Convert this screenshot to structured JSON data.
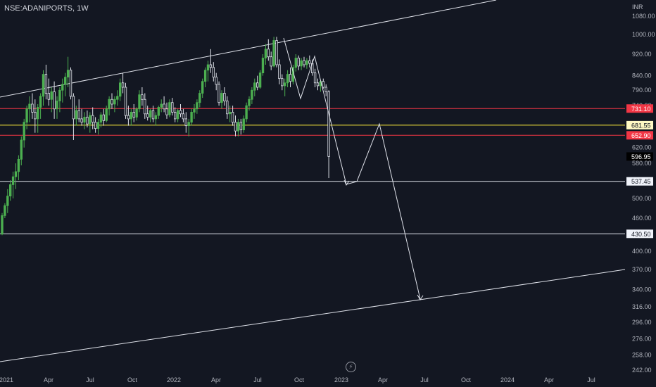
{
  "header": {
    "symbol": "NSE:ADANIPORTS, 1W",
    "currency": "INR"
  },
  "colors": {
    "background": "#131722",
    "up": "#4caf50",
    "down": "#e0e3eb",
    "resistance": "#f23645",
    "highlight": "#ffeb3b",
    "line": "#e0e3eb"
  },
  "chart_data": {
    "type": "candlestick",
    "title": "NSE:ADANIPORTS, 1W",
    "y_unit": "INR",
    "y_scale": "log",
    "ylim": [
      236,
      1150
    ],
    "y_ticks": [
      1080,
      1000,
      920,
      840,
      790,
      740,
      620,
      580,
      500,
      460,
      400,
      370,
      340,
      316,
      296,
      276,
      258,
      242
    ],
    "x_ticks": [
      "2021",
      "Apr",
      "Jul",
      "Oct",
      "2022",
      "Apr",
      "Jul",
      "Oct",
      "2023",
      "Apr",
      "Jul",
      "Oct",
      "2024",
      "Apr",
      "Jul"
    ],
    "candles_approx": [
      {
        "o": 430,
        "h": 470,
        "l": 428,
        "c": 465
      },
      {
        "o": 465,
        "h": 490,
        "l": 460,
        "c": 485
      },
      {
        "o": 485,
        "h": 520,
        "l": 470,
        "c": 505
      },
      {
        "o": 505,
        "h": 540,
        "l": 495,
        "c": 530
      },
      {
        "o": 530,
        "h": 560,
        "l": 500,
        "c": 548
      },
      {
        "o": 548,
        "h": 580,
        "l": 520,
        "c": 560
      },
      {
        "o": 560,
        "h": 600,
        "l": 540,
        "c": 590
      },
      {
        "o": 590,
        "h": 650,
        "l": 575,
        "c": 640
      },
      {
        "o": 640,
        "h": 700,
        "l": 620,
        "c": 690
      },
      {
        "o": 690,
        "h": 740,
        "l": 670,
        "c": 730
      },
      {
        "o": 730,
        "h": 770,
        "l": 690,
        "c": 745
      },
      {
        "o": 745,
        "h": 780,
        "l": 700,
        "c": 720
      },
      {
        "o": 720,
        "h": 760,
        "l": 660,
        "c": 700
      },
      {
        "o": 700,
        "h": 745,
        "l": 660,
        "c": 735
      },
      {
        "o": 735,
        "h": 780,
        "l": 700,
        "c": 770
      },
      {
        "o": 770,
        "h": 860,
        "l": 740,
        "c": 845
      },
      {
        "o": 845,
        "h": 880,
        "l": 760,
        "c": 780
      },
      {
        "o": 780,
        "h": 830,
        "l": 740,
        "c": 760
      },
      {
        "o": 760,
        "h": 800,
        "l": 720,
        "c": 785
      },
      {
        "o": 785,
        "h": 820,
        "l": 700,
        "c": 730
      },
      {
        "o": 730,
        "h": 770,
        "l": 700,
        "c": 755
      },
      {
        "o": 755,
        "h": 800,
        "l": 720,
        "c": 790
      },
      {
        "o": 790,
        "h": 830,
        "l": 750,
        "c": 810
      },
      {
        "o": 810,
        "h": 850,
        "l": 770,
        "c": 835
      },
      {
        "o": 835,
        "h": 910,
        "l": 800,
        "c": 860
      },
      {
        "o": 860,
        "h": 870,
        "l": 760,
        "c": 770
      },
      {
        "o": 770,
        "h": 780,
        "l": 640,
        "c": 700
      },
      {
        "o": 700,
        "h": 740,
        "l": 680,
        "c": 725
      },
      {
        "o": 725,
        "h": 760,
        "l": 690,
        "c": 700
      },
      {
        "o": 700,
        "h": 730,
        "l": 680,
        "c": 690
      },
      {
        "o": 690,
        "h": 720,
        "l": 670,
        "c": 705
      },
      {
        "o": 705,
        "h": 725,
        "l": 675,
        "c": 685
      },
      {
        "o": 685,
        "h": 720,
        "l": 660,
        "c": 710
      },
      {
        "o": 710,
        "h": 735,
        "l": 670,
        "c": 690
      },
      {
        "o": 690,
        "h": 705,
        "l": 660,
        "c": 672
      },
      {
        "o": 672,
        "h": 700,
        "l": 655,
        "c": 690
      },
      {
        "o": 690,
        "h": 720,
        "l": 675,
        "c": 712
      },
      {
        "o": 712,
        "h": 730,
        "l": 680,
        "c": 695
      },
      {
        "o": 695,
        "h": 740,
        "l": 690,
        "c": 730
      },
      {
        "o": 730,
        "h": 770,
        "l": 710,
        "c": 760
      },
      {
        "o": 760,
        "h": 780,
        "l": 730,
        "c": 745
      },
      {
        "o": 745,
        "h": 770,
        "l": 720,
        "c": 760
      },
      {
        "o": 760,
        "h": 790,
        "l": 740,
        "c": 770
      },
      {
        "o": 770,
        "h": 830,
        "l": 755,
        "c": 815
      },
      {
        "o": 815,
        "h": 850,
        "l": 780,
        "c": 800
      },
      {
        "o": 800,
        "h": 815,
        "l": 700,
        "c": 710
      },
      {
        "o": 710,
        "h": 740,
        "l": 680,
        "c": 700
      },
      {
        "o": 700,
        "h": 730,
        "l": 680,
        "c": 720
      },
      {
        "o": 720,
        "h": 745,
        "l": 690,
        "c": 705
      },
      {
        "o": 705,
        "h": 735,
        "l": 695,
        "c": 730
      },
      {
        "o": 730,
        "h": 790,
        "l": 720,
        "c": 775
      },
      {
        "o": 775,
        "h": 800,
        "l": 740,
        "c": 760
      },
      {
        "o": 760,
        "h": 780,
        "l": 700,
        "c": 715
      },
      {
        "o": 715,
        "h": 740,
        "l": 695,
        "c": 705
      },
      {
        "o": 705,
        "h": 730,
        "l": 690,
        "c": 725
      },
      {
        "o": 725,
        "h": 740,
        "l": 690,
        "c": 700
      },
      {
        "o": 700,
        "h": 720,
        "l": 680,
        "c": 710
      },
      {
        "o": 710,
        "h": 740,
        "l": 700,
        "c": 735
      },
      {
        "o": 735,
        "h": 760,
        "l": 720,
        "c": 745
      },
      {
        "o": 745,
        "h": 770,
        "l": 720,
        "c": 730
      },
      {
        "o": 730,
        "h": 750,
        "l": 700,
        "c": 712
      },
      {
        "o": 712,
        "h": 760,
        "l": 705,
        "c": 750
      },
      {
        "o": 750,
        "h": 765,
        "l": 710,
        "c": 720
      },
      {
        "o": 720,
        "h": 735,
        "l": 690,
        "c": 700
      },
      {
        "o": 700,
        "h": 730,
        "l": 690,
        "c": 725
      },
      {
        "o": 725,
        "h": 745,
        "l": 705,
        "c": 715
      },
      {
        "o": 715,
        "h": 730,
        "l": 690,
        "c": 700
      },
      {
        "o": 700,
        "h": 720,
        "l": 660,
        "c": 680
      },
      {
        "o": 680,
        "h": 700,
        "l": 650,
        "c": 690
      },
      {
        "o": 690,
        "h": 730,
        "l": 680,
        "c": 720
      },
      {
        "o": 720,
        "h": 745,
        "l": 700,
        "c": 730
      },
      {
        "o": 730,
        "h": 760,
        "l": 715,
        "c": 750
      },
      {
        "o": 750,
        "h": 790,
        "l": 735,
        "c": 780
      },
      {
        "o": 780,
        "h": 830,
        "l": 765,
        "c": 820
      },
      {
        "o": 820,
        "h": 870,
        "l": 800,
        "c": 860
      },
      {
        "o": 860,
        "h": 895,
        "l": 820,
        "c": 880
      },
      {
        "o": 880,
        "h": 940,
        "l": 850,
        "c": 870
      },
      {
        "o": 870,
        "h": 890,
        "l": 820,
        "c": 835
      },
      {
        "o": 835,
        "h": 850,
        "l": 790,
        "c": 810
      },
      {
        "o": 810,
        "h": 820,
        "l": 740,
        "c": 750
      },
      {
        "o": 750,
        "h": 790,
        "l": 730,
        "c": 780
      },
      {
        "o": 780,
        "h": 800,
        "l": 740,
        "c": 755
      },
      {
        "o": 755,
        "h": 770,
        "l": 700,
        "c": 715
      },
      {
        "o": 715,
        "h": 740,
        "l": 690,
        "c": 720
      },
      {
        "o": 720,
        "h": 740,
        "l": 680,
        "c": 690
      },
      {
        "o": 690,
        "h": 710,
        "l": 650,
        "c": 665
      },
      {
        "o": 665,
        "h": 700,
        "l": 650,
        "c": 690
      },
      {
        "o": 690,
        "h": 700,
        "l": 655,
        "c": 668
      },
      {
        "o": 668,
        "h": 710,
        "l": 660,
        "c": 700
      },
      {
        "o": 700,
        "h": 750,
        "l": 690,
        "c": 740
      },
      {
        "o": 740,
        "h": 770,
        "l": 725,
        "c": 760
      },
      {
        "o": 760,
        "h": 800,
        "l": 745,
        "c": 790
      },
      {
        "o": 790,
        "h": 830,
        "l": 770,
        "c": 815
      },
      {
        "o": 815,
        "h": 840,
        "l": 790,
        "c": 800
      },
      {
        "o": 800,
        "h": 860,
        "l": 795,
        "c": 850
      },
      {
        "o": 850,
        "h": 920,
        "l": 840,
        "c": 905
      },
      {
        "o": 905,
        "h": 960,
        "l": 880,
        "c": 940
      },
      {
        "o": 940,
        "h": 980,
        "l": 895,
        "c": 910
      },
      {
        "o": 910,
        "h": 930,
        "l": 860,
        "c": 875
      },
      {
        "o": 875,
        "h": 990,
        "l": 870,
        "c": 975
      },
      {
        "o": 975,
        "h": 990,
        "l": 870,
        "c": 880
      },
      {
        "o": 880,
        "h": 900,
        "l": 810,
        "c": 830
      },
      {
        "o": 830,
        "h": 845,
        "l": 790,
        "c": 805
      },
      {
        "o": 805,
        "h": 830,
        "l": 770,
        "c": 815
      },
      {
        "o": 815,
        "h": 860,
        "l": 800,
        "c": 845
      },
      {
        "o": 845,
        "h": 870,
        "l": 800,
        "c": 820
      },
      {
        "o": 820,
        "h": 880,
        "l": 810,
        "c": 870
      },
      {
        "o": 870,
        "h": 920,
        "l": 855,
        "c": 905
      },
      {
        "o": 905,
        "h": 915,
        "l": 860,
        "c": 875
      },
      {
        "o": 875,
        "h": 905,
        "l": 860,
        "c": 895
      },
      {
        "o": 895,
        "h": 910,
        "l": 870,
        "c": 880
      },
      {
        "o": 880,
        "h": 905,
        "l": 865,
        "c": 895
      },
      {
        "o": 895,
        "h": 915,
        "l": 870,
        "c": 885
      },
      {
        "o": 885,
        "h": 900,
        "l": 840,
        "c": 850
      },
      {
        "o": 850,
        "h": 865,
        "l": 800,
        "c": 815
      },
      {
        "o": 815,
        "h": 830,
        "l": 790,
        "c": 805
      },
      {
        "o": 805,
        "h": 825,
        "l": 785,
        "c": 820
      },
      {
        "o": 820,
        "h": 830,
        "l": 795,
        "c": 800
      },
      {
        "o": 800,
        "h": 810,
        "l": 770,
        "c": 785
      },
      {
        "o": 785,
        "h": 790,
        "l": 545,
        "c": 597
      }
    ],
    "horizontal_lines": [
      {
        "value": 731.1,
        "label": "731.10",
        "color": "#f23645"
      },
      {
        "value": 681.55,
        "label": "681.55",
        "color": "#ffeb3b"
      },
      {
        "value": 652.9,
        "label": "652.90",
        "color": "#f23645"
      },
      {
        "value": 537.45,
        "label": "537.45",
        "color": "#e0e3eb"
      },
      {
        "value": 430.5,
        "label": "430.50",
        "color": "#e0e3eb"
      }
    ],
    "last_price": {
      "value": 596.95,
      "label": "596.95"
    },
    "projection_path_prices": [
      975,
      870,
      915,
      537,
      537,
      681,
      321
    ],
    "channel_lines": "ascending upper and lower trend lines"
  }
}
